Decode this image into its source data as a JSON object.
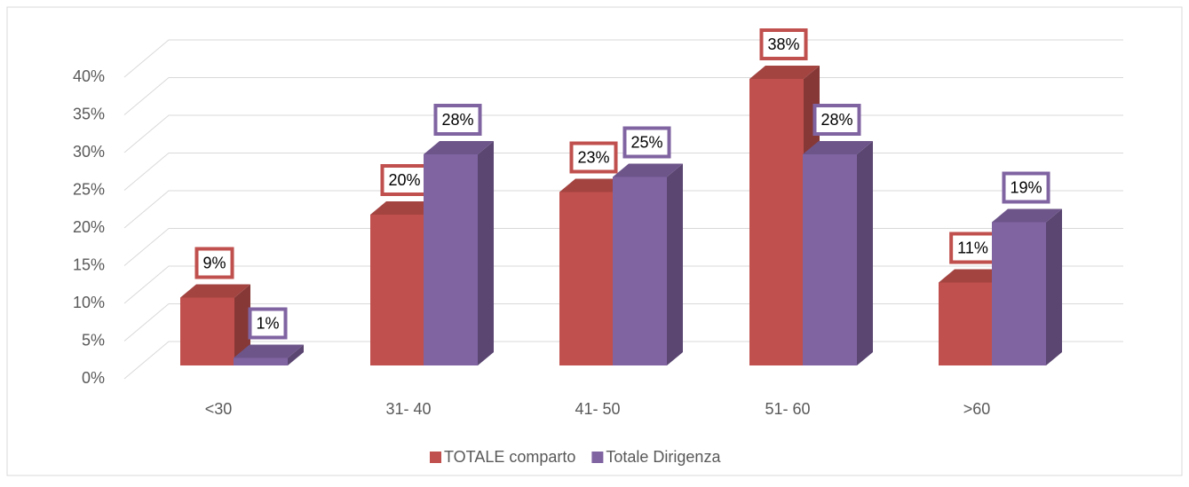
{
  "chart_data": {
    "type": "bar3d",
    "categories": [
      "<30",
      "31- 40",
      "41- 50",
      "51- 60",
      ">60"
    ],
    "series": [
      {
        "name": "TOTALE comparto",
        "color": "#c0504d",
        "values": [
          9,
          20,
          23,
          38,
          11
        ],
        "value_labels": [
          "9%",
          "20%",
          "23%",
          "38%",
          "11%"
        ]
      },
      {
        "name": "Totale Dirigenza",
        "color": "#8064a2",
        "values": [
          1,
          28,
          25,
          28,
          19
        ],
        "value_labels": [
          "1%",
          "28%",
          "25%",
          "28%",
          "19%"
        ]
      }
    ],
    "ylim": [
      0,
      40
    ],
    "yticks": [
      {
        "value": 0,
        "label": "0%"
      },
      {
        "value": 5,
        "label": "5%"
      },
      {
        "value": 10,
        "label": "10%"
      },
      {
        "value": 15,
        "label": "15%"
      },
      {
        "value": 20,
        "label": "20%"
      },
      {
        "value": 25,
        "label": "25%"
      },
      {
        "value": 30,
        "label": "30%"
      },
      {
        "value": 35,
        "label": "35%"
      },
      {
        "value": 40,
        "label": "40%"
      }
    ],
    "grid": true,
    "legend": "bottom"
  }
}
